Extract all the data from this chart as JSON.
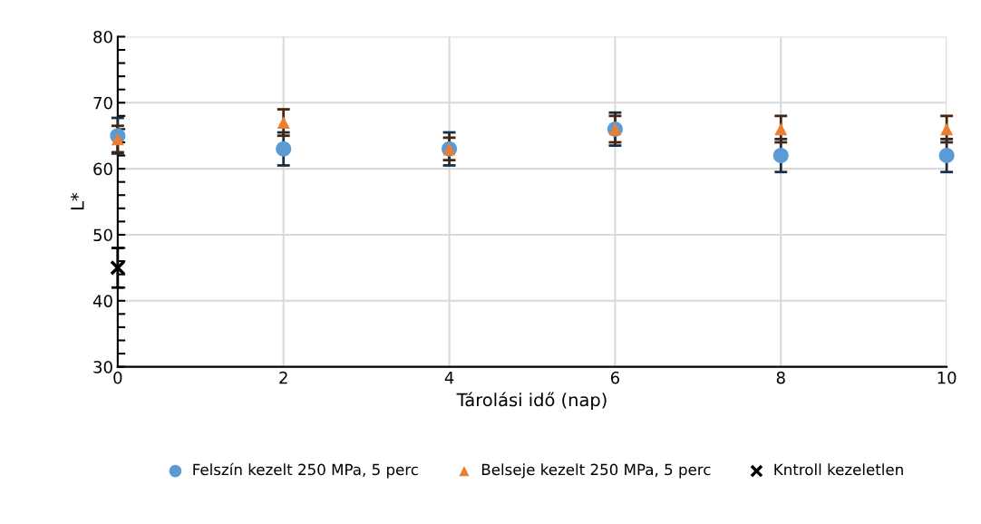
{
  "chart_data": {
    "type": "scatter",
    "xlabel": "Tárolási idő (nap)",
    "ylabel": "L*",
    "x": [
      0,
      2,
      4,
      6,
      8,
      10
    ],
    "xlim": [
      0,
      10
    ],
    "xticks": [
      0,
      2,
      4,
      6,
      8,
      10
    ],
    "ylim": [
      30,
      80
    ],
    "yticks": [
      30,
      {
        "value": 32,
        "label": null
      },
      {
        "value": 34,
        "label": null
      },
      {
        "value": 36,
        "label": null
      },
      {
        "value": 38,
        "label": null
      },
      40,
      {
        "value": 42,
        "label": null
      },
      {
        "value": 44,
        "label": null
      },
      {
        "value": 46,
        "label": null
      },
      {
        "value": 48,
        "label": null
      },
      50,
      {
        "value": 52,
        "label": null
      },
      {
        "value": 54,
        "label": null
      },
      {
        "value": 56,
        "label": null
      },
      {
        "value": 58,
        "label": null
      },
      60,
      {
        "value": 62,
        "label": null
      },
      {
        "value": 64,
        "label": null
      },
      {
        "value": 66,
        "label": null
      },
      {
        "value": 68,
        "label": null
      },
      70,
      {
        "value": 72,
        "label": null
      },
      {
        "value": 74,
        "label": null
      },
      {
        "value": 76,
        "label": null
      },
      {
        "value": 78,
        "label": null
      },
      80
    ],
    "grid": true,
    "legend": "bottom",
    "series": [
      {
        "name": "Felszín kezelt 250 MPa, 5 perc",
        "color": "#5b9bd5",
        "marker": "circle",
        "values": [
          65,
          63,
          63,
          66,
          62,
          62
        ],
        "errors": [
          2.7,
          2.5,
          2.5,
          2.5,
          2.5,
          2.5
        ]
      },
      {
        "name": "Belseje kezelt 250 MPa, 5 perc",
        "color": "#ed7d31",
        "marker": "triangle",
        "values": [
          64.5,
          67,
          63,
          66,
          66,
          66
        ],
        "errors": [
          2,
          2,
          1.7,
          2,
          2,
          2
        ]
      },
      {
        "name": "Kntroll kezeletlen",
        "color": "#000000",
        "marker": "cross",
        "x": [
          0
        ],
        "values": [
          45
        ],
        "errors": [
          3
        ]
      }
    ]
  }
}
